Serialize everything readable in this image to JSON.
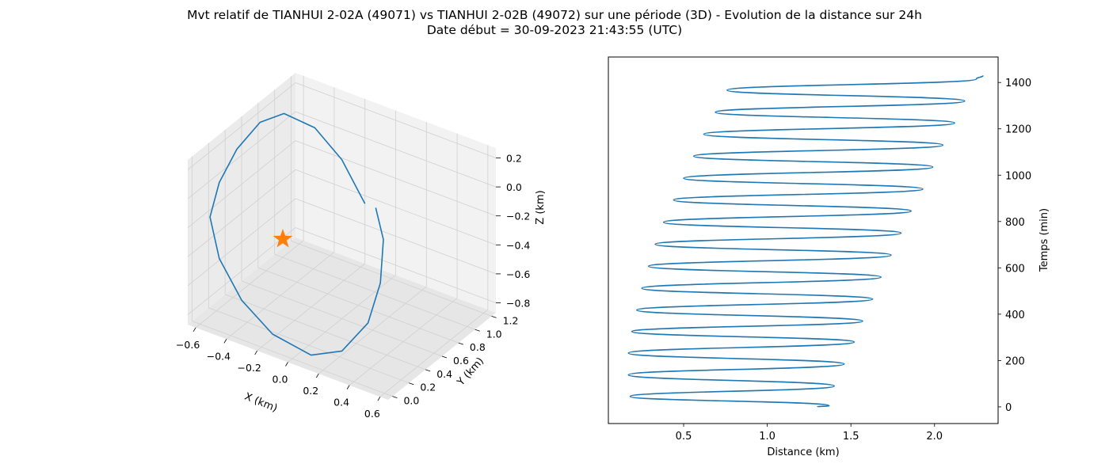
{
  "figure": {
    "title_line1": "Mvt relatif de TIANHUI 2-02A (49071) vs TIANHUI 2-02B (49072) sur une période (3D) - Evolution de la distance sur 24h",
    "title_line2": "Date début = 30-09-2023 21:43:55 (UTC)"
  },
  "colors": {
    "series": "#1f77b4",
    "marker": "#ff7f0e",
    "pane_light": "#f2f2f2",
    "pane_mid": "#e6e6e6",
    "pane_dark": "#ebebeb",
    "grid": "#d0d0d0"
  },
  "chart_data": [
    {
      "type": "line3d",
      "xlabel": "X (km)",
      "ylabel": "Y (km)",
      "zlabel": "Z (km)",
      "xticks": [
        "−0.6",
        "−0.4",
        "−0.2",
        "0.0",
        "0.2",
        "0.4",
        "0.6"
      ],
      "yticks": [
        "0.0",
        "0.2",
        "0.4",
        "0.6",
        "0.8",
        "1.0",
        "1.2"
      ],
      "zticks": [
        "0.2",
        "0.0",
        "−0.2",
        "−0.4",
        "−0.6",
        "−0.8"
      ],
      "xlim": [
        -0.65,
        0.65
      ],
      "ylim": [
        -0.05,
        1.35
      ],
      "zlim": [
        -0.95,
        0.3
      ],
      "origin_marker": "star",
      "series": [
        {
          "points": [
            [
              0.05,
              0.85,
              -0.15
            ],
            [
              -0.15,
              0.95,
              0.05
            ],
            [
              -0.35,
              1.0,
              0.18
            ],
            [
              -0.55,
              1.0,
              0.2
            ],
            [
              -0.68,
              0.95,
              0.1
            ],
            [
              -0.78,
              0.85,
              -0.1
            ],
            [
              -0.82,
              0.7,
              -0.3
            ],
            [
              -0.78,
              0.5,
              -0.45
            ],
            [
              -0.62,
              0.3,
              -0.6
            ],
            [
              -0.4,
              0.15,
              -0.75
            ],
            [
              -0.15,
              0.05,
              -0.85
            ],
            [
              0.1,
              0.05,
              -0.9
            ],
            [
              0.25,
              0.15,
              -0.85
            ],
            [
              0.32,
              0.35,
              -0.7
            ],
            [
              0.3,
              0.55,
              -0.5
            ],
            [
              0.22,
              0.75,
              -0.3
            ],
            [
              0.12,
              0.85,
              -0.15
            ]
          ]
        }
      ]
    },
    {
      "type": "line",
      "xlabel": "Distance (km)",
      "ylabel": "Temps (min)",
      "xlim": [
        0.05,
        2.38
      ],
      "ylim": [
        -72,
        1510
      ],
      "xticks": [
        "0.5",
        "1.0",
        "1.5",
        "2.0"
      ],
      "yticks": [
        "0",
        "200",
        "400",
        "600",
        "800",
        "1000",
        "1200",
        "1400"
      ],
      "ytick_side": "right",
      "series": [
        {
          "x": [
            1.3,
            1.37,
            0.18,
            1.4,
            0.17,
            1.46,
            0.17,
            1.52,
            0.19,
            1.57,
            0.22,
            1.63,
            0.25,
            1.68,
            0.29,
            1.74,
            0.33,
            1.8,
            0.38,
            1.86,
            0.44,
            1.93,
            0.5,
            1.99,
            0.56,
            2.05,
            0.62,
            2.12,
            0.69,
            2.18,
            0.76,
            2.25,
            2.29
          ],
          "y": [
            0,
            5,
            45,
            90,
            138,
            185,
            232,
            280,
            325,
            370,
            418,
            465,
            512,
            560,
            607,
            655,
            702,
            750,
            797,
            845,
            893,
            940,
            987,
            1035,
            1082,
            1130,
            1177,
            1225,
            1272,
            1320,
            1367,
            1415,
            1430
          ]
        }
      ]
    }
  ]
}
